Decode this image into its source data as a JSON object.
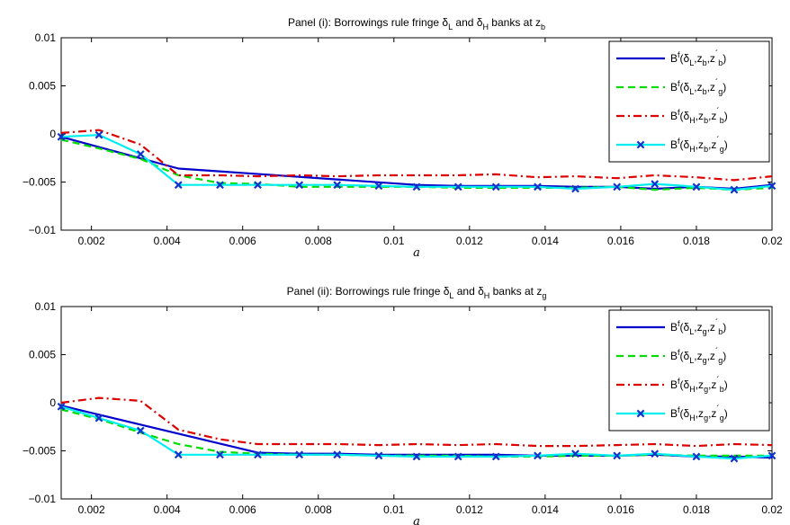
{
  "chart_data": [
    {
      "type": "line",
      "title": "Panel (i): Borrowings rule fringe δL and δH banks at zb",
      "title_parts": {
        "main": "Panel (i): Borrowings rule fringe δ",
        "s1": "L",
        "mid": " and δ",
        "s2": "H",
        "post": " banks at z",
        "s3": "b"
      },
      "xlabel": "a",
      "xlim": [
        0.0012,
        0.02
      ],
      "ylim": [
        -0.01,
        0.01
      ],
      "xticks": [
        0.002,
        0.004,
        0.006,
        0.008,
        0.01,
        0.012,
        0.014,
        0.016,
        0.018,
        0.02
      ],
      "xtick_labels": [
        "0.002",
        "0.004",
        "0.006",
        "0.008",
        "0.01",
        "0.012",
        "0.014",
        "0.016",
        "0.018",
        "0.02"
      ],
      "yticks": [
        -0.01,
        -0.005,
        0,
        0.005,
        0.01
      ],
      "ytick_labels": [
        "−0.01",
        "−0.005",
        "0",
        "0.005",
        "0.01"
      ],
      "grid": false,
      "legend_position": "top-right",
      "x": [
        0.0012,
        0.0022,
        0.0033,
        0.0043,
        0.0054,
        0.0064,
        0.0075,
        0.0085,
        0.0096,
        0.0106,
        0.0117,
        0.0127,
        0.0138,
        0.0148,
        0.0159,
        0.0169,
        0.018,
        0.019,
        0.02
      ],
      "series": [
        {
          "name": "Bf(δL,zb,z′b)",
          "legend": {
            "d": "L",
            "z": "b",
            "zp": "b"
          },
          "color": "#0000cc",
          "style": "solid",
          "marker": false,
          "values": [
            -0.0003,
            null,
            null,
            -0.0036,
            null,
            null,
            null,
            null,
            null,
            -0.0053,
            -0.0054,
            -0.0054,
            -0.0054,
            -0.0055,
            -0.0055,
            -0.0057,
            -0.0055,
            -0.0057,
            -0.0053
          ]
        },
        {
          "name": "Bf(δL,zb,z′g)",
          "legend": {
            "d": "L",
            "z": "b",
            "zp": "g"
          },
          "color": "#00dd00",
          "style": "dash",
          "marker": false,
          "values": [
            -0.0006,
            -0.0015,
            -0.0026,
            -0.0043,
            -0.0051,
            -0.0052,
            -0.0055,
            -0.0055,
            -0.0055,
            -0.0055,
            -0.0056,
            -0.0056,
            -0.0056,
            -0.0056,
            -0.0055,
            -0.0058,
            -0.0056,
            -0.0058,
            -0.0056
          ]
        },
        {
          "name": "Bf(δH,zb,z′b)",
          "legend": {
            "d": "H",
            "z": "b",
            "zp": "b"
          },
          "color": "#dd0000",
          "style": "dashdot",
          "marker": false,
          "values": [
            0.0001,
            0.0004,
            -0.0011,
            -0.0043,
            -0.0043,
            -0.0044,
            -0.0043,
            -0.0044,
            -0.0043,
            -0.0043,
            -0.0043,
            -0.0042,
            -0.0045,
            -0.0044,
            -0.0046,
            -0.0043,
            -0.0045,
            -0.0048,
            -0.0044
          ]
        },
        {
          "name": "Bf(δH,zb,z′g)",
          "legend": {
            "d": "H",
            "z": "b",
            "zp": "g"
          },
          "color": "#00eeee",
          "style": "solid",
          "marker": true,
          "marker_color": "#1133cc",
          "values": [
            -0.0003,
            -0.0001,
            -0.0021,
            -0.0053,
            -0.0053,
            -0.0053,
            -0.0053,
            -0.0053,
            -0.0054,
            -0.0055,
            -0.0055,
            -0.0055,
            -0.0055,
            -0.0057,
            -0.0055,
            -0.0052,
            -0.0055,
            -0.0058,
            -0.0054
          ]
        }
      ]
    },
    {
      "type": "line",
      "title": "Panel (ii): Borrowings rule fringe δL and δH banks at zg",
      "title_parts": {
        "main": "Panel (ii): Borrowings rule fringe δ",
        "s1": "L",
        "mid": " and δ",
        "s2": "H",
        "post": " banks at z",
        "s3": "g"
      },
      "xlabel": "a",
      "xlim": [
        0.0012,
        0.02
      ],
      "ylim": [
        -0.01,
        0.01
      ],
      "xticks": [
        0.002,
        0.004,
        0.006,
        0.008,
        0.01,
        0.012,
        0.014,
        0.016,
        0.018,
        0.02
      ],
      "xtick_labels": [
        "0.002",
        "0.004",
        "0.006",
        "0.008",
        "0.01",
        "0.012",
        "0.014",
        "0.016",
        "0.018",
        "0.02"
      ],
      "yticks": [
        -0.01,
        -0.005,
        0,
        0.005,
        0.01
      ],
      "ytick_labels": [
        "−0.01",
        "−0.005",
        "0",
        "0.005",
        "0.01"
      ],
      "grid": false,
      "legend_position": "top-right",
      "x": [
        0.0012,
        0.0022,
        0.0033,
        0.0043,
        0.0054,
        0.0064,
        0.0075,
        0.0085,
        0.0096,
        0.0106,
        0.0117,
        0.0127,
        0.0138,
        0.0148,
        0.0159,
        0.0169,
        0.018,
        0.019,
        0.02
      ],
      "series": [
        {
          "name": "Bf(δL,zg,z′b)",
          "legend": {
            "d": "L",
            "z": "g",
            "zp": "b"
          },
          "color": "#0000cc",
          "style": "solid",
          "marker": false,
          "values": [
            -0.0003,
            null,
            null,
            null,
            null,
            -0.0052,
            -0.0053,
            -0.0053,
            -0.0054,
            -0.0054,
            -0.0054,
            -0.0054,
            -0.0055,
            -0.0055,
            -0.0055,
            -0.0054,
            -0.0056,
            -0.0056,
            -0.0057
          ]
        },
        {
          "name": "Bf(δL,zg,z′g)",
          "legend": {
            "d": "L",
            "z": "g",
            "zp": "g"
          },
          "color": "#00dd00",
          "style": "dash",
          "marker": false,
          "values": [
            -0.0007,
            -0.0017,
            -0.0031,
            -0.0043,
            -0.0051,
            -0.0053,
            -0.0054,
            -0.0054,
            -0.0055,
            -0.0055,
            -0.0055,
            -0.0056,
            -0.0056,
            -0.0055,
            -0.0055,
            -0.0054,
            -0.0055,
            -0.0055,
            -0.0055
          ]
        },
        {
          "name": "Bf(δH,zg,z′b)",
          "legend": {
            "d": "H",
            "z": "g",
            "zp": "b"
          },
          "color": "#dd0000",
          "style": "dashdot",
          "marker": false,
          "values": [
            0.0,
            0.0005,
            0.0002,
            -0.0028,
            -0.0038,
            -0.0043,
            -0.0043,
            -0.0043,
            -0.0044,
            -0.0043,
            -0.0044,
            -0.0043,
            -0.0045,
            -0.0045,
            -0.0044,
            -0.0043,
            -0.0045,
            -0.0043,
            -0.0044
          ]
        },
        {
          "name": "Bf(δH,zg,z′g)",
          "legend": {
            "d": "H",
            "z": "g",
            "zp": "g"
          },
          "color": "#00eeee",
          "style": "solid",
          "marker": true,
          "marker_color": "#1133cc",
          "values": [
            -0.0004,
            -0.0016,
            -0.0029,
            -0.0054,
            -0.0054,
            -0.0054,
            -0.0054,
            -0.0054,
            -0.0055,
            -0.0056,
            -0.0056,
            -0.0056,
            -0.0055,
            -0.0053,
            -0.0055,
            -0.0053,
            -0.0056,
            -0.0058,
            -0.0055
          ]
        }
      ]
    }
  ]
}
